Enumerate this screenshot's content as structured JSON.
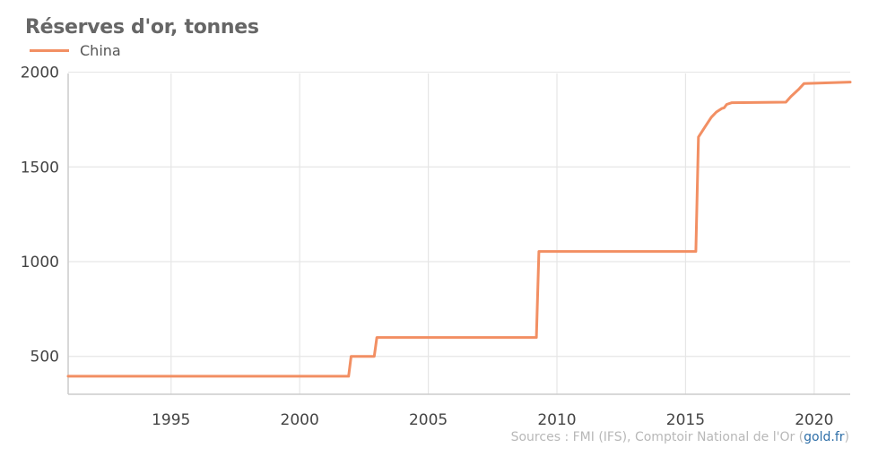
{
  "title": "Réserves d'or, tonnes",
  "legend": {
    "label": "China"
  },
  "colors": {
    "series": "#f28f63",
    "grid": "#e6e6e6",
    "axis": "#cccccc"
  },
  "source": {
    "prefix": "Sources : FMI (IFS), Comptoir National de l'Or (",
    "brand": "gold.fr",
    "suffix": ")"
  },
  "chart_data": {
    "type": "line",
    "title": "Réserves d'or, tonnes",
    "xlabel": "",
    "ylabel": "",
    "xlim": [
      1991,
      2021.4
    ],
    "ylim": [
      300,
      2050
    ],
    "x_ticks": [
      1995,
      2000,
      2005,
      2010,
      2015,
      2020
    ],
    "y_ticks": [
      500,
      1000,
      1500,
      2000
    ],
    "grid": true,
    "legend_position": "top-left",
    "series": [
      {
        "name": "China",
        "color": "#f28f63",
        "points": [
          [
            1991.0,
            395
          ],
          [
            2001.9,
            395
          ],
          [
            2002.0,
            500
          ],
          [
            2002.9,
            500
          ],
          [
            2003.0,
            600
          ],
          [
            2009.2,
            600
          ],
          [
            2009.3,
            1054
          ],
          [
            2015.4,
            1054
          ],
          [
            2015.5,
            1658
          ],
          [
            2015.75,
            1710
          ],
          [
            2016.0,
            1762
          ],
          [
            2016.2,
            1790
          ],
          [
            2016.4,
            1808
          ],
          [
            2016.5,
            1812
          ],
          [
            2016.6,
            1830
          ],
          [
            2016.8,
            1839
          ],
          [
            2018.9,
            1842
          ],
          [
            2019.1,
            1872
          ],
          [
            2019.4,
            1910
          ],
          [
            2019.6,
            1940
          ],
          [
            2021.4,
            1948
          ]
        ]
      }
    ]
  }
}
